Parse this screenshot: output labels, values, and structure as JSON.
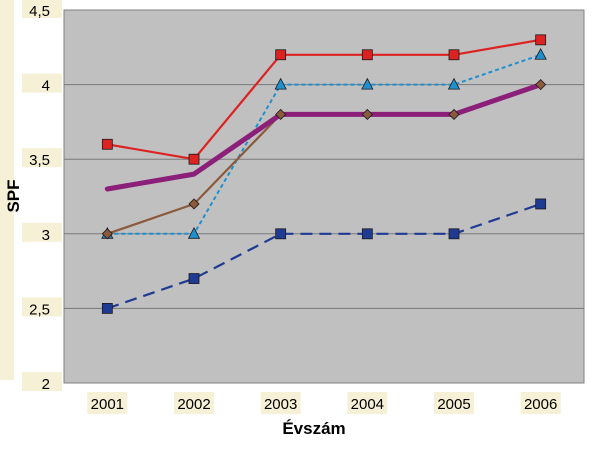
{
  "chart_data": {
    "type": "line",
    "title": "",
    "xlabel": "Évszám",
    "ylabel": "SPF",
    "categories": [
      "2001",
      "2002",
      "2003",
      "2004",
      "2005",
      "2006"
    ],
    "y_tick_labels": [
      "2",
      "2,5",
      "3",
      "3,5",
      "4",
      "4,5"
    ],
    "ylim": [
      2,
      4.5
    ],
    "grid": true,
    "legend": "none",
    "plot_background": "#c0c0c0",
    "series": [
      {
        "values": [
          3.6,
          3.5,
          4.2,
          4.2,
          4.2,
          4.3
        ],
        "color": "#dd2222",
        "style": "solid",
        "marker": "square"
      },
      {
        "values": [
          3.0,
          3.0,
          4.0,
          4.0,
          4.0,
          4.2
        ],
        "color": "#1e90d0",
        "style": "dotted",
        "marker": "triangle"
      },
      {
        "values": [
          3.0,
          3.2,
          3.8,
          3.8,
          3.8,
          4.0
        ],
        "color": "#8b5a3c",
        "style": "solid",
        "marker": "diamond"
      },
      {
        "values": [
          3.3,
          3.4,
          3.8,
          3.8,
          3.8,
          4.0
        ],
        "color": "#8b1f7a",
        "style": "thick",
        "marker": "none"
      },
      {
        "values": [
          2.5,
          2.7,
          3.0,
          3.0,
          3.0,
          3.2
        ],
        "color": "#1f3a93",
        "style": "dashed",
        "marker": "square"
      }
    ]
  }
}
